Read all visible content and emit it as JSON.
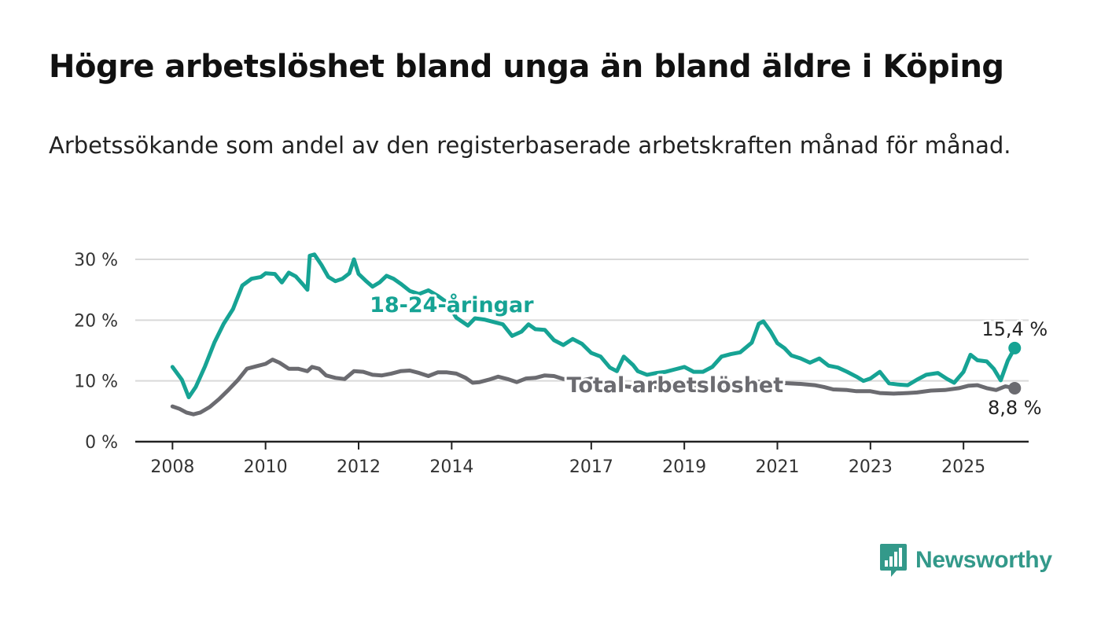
{
  "header": {
    "title": "Högre arbetslöshet bland unga än bland äldre i Köping",
    "subtitle": "Arbetssökande som andel av den registerbaserade arbetskraften månad för månad."
  },
  "brand": {
    "name": "Newsworthy",
    "color": "#33998a",
    "icon": "bar-chart-speech-bubble-icon"
  },
  "chart_data": {
    "type": "line",
    "y_ticks": [
      0,
      10,
      20,
      30
    ],
    "y_tick_labels": [
      "0 %",
      "10 %",
      "20 %",
      "30 %"
    ],
    "x_ticks": [
      2008,
      2010,
      2012,
      2014,
      2017,
      2019,
      2021,
      2023,
      2025
    ],
    "x_tick_labels": [
      "2008",
      "2010",
      "2012",
      "2014",
      "2017",
      "2019",
      "2021",
      "2023",
      "2025"
    ],
    "ylim": [
      0,
      30
    ],
    "xlim": [
      2007.2,
      2026.4
    ],
    "grid": true,
    "series": [
      {
        "name": "18-24-åringar",
        "color": "#16a394",
        "end_label": "15,4 %",
        "points": [
          [
            2008.0,
            12.3
          ],
          [
            2008.2,
            10.2
          ],
          [
            2008.35,
            7.3
          ],
          [
            2008.5,
            9.0
          ],
          [
            2008.7,
            12.4
          ],
          [
            2008.9,
            16.3
          ],
          [
            2009.1,
            19.4
          ],
          [
            2009.3,
            21.8
          ],
          [
            2009.5,
            25.7
          ],
          [
            2009.7,
            26.8
          ],
          [
            2009.9,
            27.1
          ],
          [
            2010.0,
            27.7
          ],
          [
            2010.2,
            27.6
          ],
          [
            2010.35,
            26.2
          ],
          [
            2010.5,
            27.8
          ],
          [
            2010.65,
            27.2
          ],
          [
            2010.8,
            25.9
          ],
          [
            2010.9,
            25.0
          ],
          [
            2010.95,
            30.6
          ],
          [
            2011.05,
            30.8
          ],
          [
            2011.2,
            29.1
          ],
          [
            2011.35,
            27.1
          ],
          [
            2011.5,
            26.4
          ],
          [
            2011.65,
            26.8
          ],
          [
            2011.8,
            27.7
          ],
          [
            2011.9,
            30.0
          ],
          [
            2012.0,
            27.6
          ],
          [
            2012.15,
            26.5
          ],
          [
            2012.3,
            25.5
          ],
          [
            2012.45,
            26.2
          ],
          [
            2012.6,
            27.3
          ],
          [
            2012.75,
            26.8
          ],
          [
            2012.9,
            26.0
          ],
          [
            2013.1,
            24.8
          ],
          [
            2013.3,
            24.3
          ],
          [
            2013.5,
            24.9
          ],
          [
            2013.7,
            24.0
          ],
          [
            2013.9,
            22.9
          ],
          [
            2014.1,
            20.4
          ],
          [
            2014.35,
            19.1
          ],
          [
            2014.5,
            20.3
          ],
          [
            2014.7,
            20.1
          ],
          [
            2014.9,
            19.7
          ],
          [
            2015.1,
            19.3
          ],
          [
            2015.3,
            17.4
          ],
          [
            2015.5,
            18.1
          ],
          [
            2015.65,
            19.3
          ],
          [
            2015.8,
            18.5
          ],
          [
            2016.0,
            18.4
          ],
          [
            2016.2,
            16.7
          ],
          [
            2016.4,
            15.9
          ],
          [
            2016.6,
            16.9
          ],
          [
            2016.8,
            16.1
          ],
          [
            2017.0,
            14.6
          ],
          [
            2017.2,
            14.0
          ],
          [
            2017.4,
            12.2
          ],
          [
            2017.55,
            11.6
          ],
          [
            2017.7,
            14.0
          ],
          [
            2017.9,
            12.6
          ],
          [
            2018.0,
            11.6
          ],
          [
            2018.2,
            11.0
          ],
          [
            2018.4,
            11.3
          ],
          [
            2018.6,
            11.5
          ],
          [
            2018.8,
            11.9
          ],
          [
            2019.0,
            12.3
          ],
          [
            2019.2,
            11.5
          ],
          [
            2019.4,
            11.5
          ],
          [
            2019.6,
            12.3
          ],
          [
            2019.8,
            14.0
          ],
          [
            2020.0,
            14.4
          ],
          [
            2020.2,
            14.7
          ],
          [
            2020.45,
            16.3
          ],
          [
            2020.6,
            19.4
          ],
          [
            2020.7,
            19.8
          ],
          [
            2020.85,
            18.2
          ],
          [
            2021.0,
            16.2
          ],
          [
            2021.15,
            15.4
          ],
          [
            2021.3,
            14.2
          ],
          [
            2021.5,
            13.7
          ],
          [
            2021.7,
            13.0
          ],
          [
            2021.9,
            13.7
          ],
          [
            2022.1,
            12.5
          ],
          [
            2022.3,
            12.2
          ],
          [
            2022.5,
            11.5
          ],
          [
            2022.7,
            10.7
          ],
          [
            2022.85,
            10.0
          ],
          [
            2023.0,
            10.4
          ],
          [
            2023.2,
            11.5
          ],
          [
            2023.4,
            9.6
          ],
          [
            2023.6,
            9.4
          ],
          [
            2023.8,
            9.3
          ],
          [
            2024.0,
            10.2
          ],
          [
            2024.2,
            11.0
          ],
          [
            2024.45,
            11.3
          ],
          [
            2024.65,
            10.3
          ],
          [
            2024.8,
            9.7
          ],
          [
            2025.0,
            11.5
          ],
          [
            2025.15,
            14.3
          ],
          [
            2025.3,
            13.4
          ],
          [
            2025.5,
            13.2
          ],
          [
            2025.65,
            12.0
          ],
          [
            2025.8,
            10.1
          ],
          [
            2025.95,
            13.3
          ],
          [
            2026.1,
            15.4
          ]
        ]
      },
      {
        "name": "Total arbetslöshet",
        "color": "#6b6b70",
        "end_label": "8,8 %",
        "points": [
          [
            2008.0,
            5.8
          ],
          [
            2008.15,
            5.4
          ],
          [
            2008.3,
            4.8
          ],
          [
            2008.45,
            4.5
          ],
          [
            2008.6,
            4.8
          ],
          [
            2008.8,
            5.7
          ],
          [
            2009.0,
            7.0
          ],
          [
            2009.2,
            8.5
          ],
          [
            2009.4,
            10.1
          ],
          [
            2009.6,
            12.0
          ],
          [
            2009.8,
            12.4
          ],
          [
            2010.0,
            12.8
          ],
          [
            2010.15,
            13.5
          ],
          [
            2010.3,
            13.0
          ],
          [
            2010.5,
            12.0
          ],
          [
            2010.7,
            12.0
          ],
          [
            2010.9,
            11.6
          ],
          [
            2011.0,
            12.3
          ],
          [
            2011.15,
            12.0
          ],
          [
            2011.3,
            10.9
          ],
          [
            2011.5,
            10.5
          ],
          [
            2011.7,
            10.3
          ],
          [
            2011.9,
            11.6
          ],
          [
            2012.1,
            11.5
          ],
          [
            2012.3,
            11.0
          ],
          [
            2012.5,
            10.9
          ],
          [
            2012.7,
            11.2
          ],
          [
            2012.9,
            11.6
          ],
          [
            2013.1,
            11.7
          ],
          [
            2013.3,
            11.3
          ],
          [
            2013.5,
            10.8
          ],
          [
            2013.7,
            11.4
          ],
          [
            2013.9,
            11.4
          ],
          [
            2014.1,
            11.2
          ],
          [
            2014.3,
            10.5
          ],
          [
            2014.45,
            9.7
          ],
          [
            2014.6,
            9.8
          ],
          [
            2014.8,
            10.2
          ],
          [
            2015.0,
            10.7
          ],
          [
            2015.2,
            10.3
          ],
          [
            2015.4,
            9.8
          ],
          [
            2015.6,
            10.4
          ],
          [
            2015.8,
            10.5
          ],
          [
            2016.0,
            10.9
          ],
          [
            2016.2,
            10.8
          ],
          [
            2016.4,
            10.3
          ],
          [
            2016.6,
            10.4
          ],
          [
            2016.8,
            10.1
          ],
          [
            2017.0,
            10.4
          ],
          [
            2017.2,
            10.0
          ],
          [
            2017.4,
            9.5
          ],
          [
            2017.6,
            9.2
          ],
          [
            2018.0,
            8.9
          ],
          [
            2018.5,
            9.0
          ],
          [
            2019.0,
            9.1
          ],
          [
            2019.5,
            9.1
          ],
          [
            2020.0,
            9.3
          ],
          [
            2020.5,
            9.9
          ],
          [
            2021.0,
            9.7
          ],
          [
            2021.5,
            9.5
          ],
          [
            2021.8,
            9.3
          ],
          [
            2022.0,
            9.0
          ],
          [
            2022.2,
            8.6
          ],
          [
            2022.5,
            8.5
          ],
          [
            2022.7,
            8.3
          ],
          [
            2023.0,
            8.3
          ],
          [
            2023.2,
            8.0
          ],
          [
            2023.5,
            7.9
          ],
          [
            2023.8,
            8.0
          ],
          [
            2024.0,
            8.1
          ],
          [
            2024.3,
            8.4
          ],
          [
            2024.6,
            8.5
          ],
          [
            2024.9,
            8.8
          ],
          [
            2025.1,
            9.2
          ],
          [
            2025.3,
            9.3
          ],
          [
            2025.5,
            8.8
          ],
          [
            2025.7,
            8.5
          ],
          [
            2025.9,
            9.1
          ],
          [
            2026.1,
            8.8
          ]
        ]
      }
    ],
    "annotations": [
      {
        "text": "18-24-åringar",
        "series": 0,
        "x": 2014.0,
        "y": 22.5
      },
      {
        "text": "Total arbetslöshet",
        "series": 1,
        "x": 2018.8,
        "y": 9.3
      }
    ]
  }
}
